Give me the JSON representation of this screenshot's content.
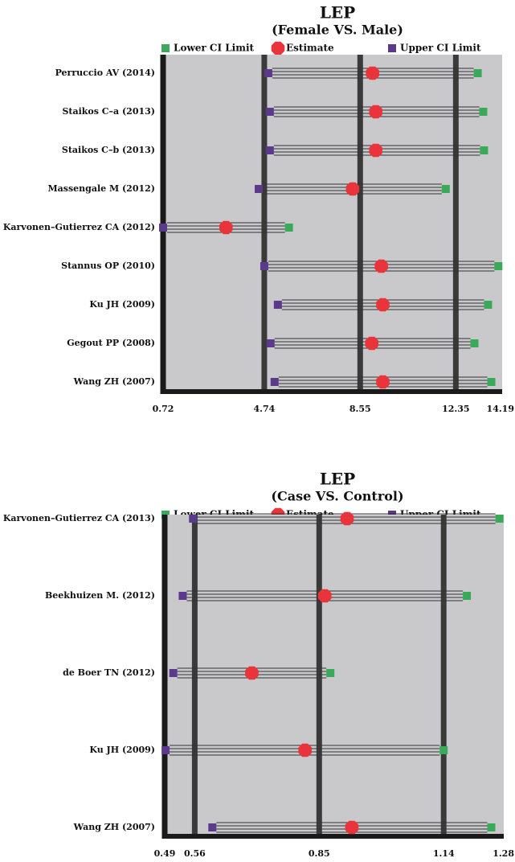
{
  "chart_data": [
    {
      "type": "forest",
      "title": "LEP",
      "subtitle": "(Female VS. Male)",
      "categories": [
        "Perruccio AV (2014)",
        "Staikos C–a (2013)",
        "Staikos C–b (2013)",
        "Massengale M (2012)",
        "Karvonen–Gutierrez CA (2012)",
        "Stannus OP (2010)",
        "Ku JH (2009)",
        "Gegout PP (2008)",
        "Wang ZH (2007)"
      ],
      "series": [
        {
          "name": "Lower CI Limit",
          "color": "#3aaa5a",
          "values": [
            13.22,
            13.44,
            13.47,
            11.95,
            5.72,
            14.04,
            13.63,
            13.09,
            13.76
          ]
        },
        {
          "name": "Estimate",
          "color": "#e8343a",
          "values": [
            9.04,
            9.17,
            9.17,
            8.25,
            3.22,
            9.39,
            9.45,
            9.01,
            9.45
          ]
        },
        {
          "name": "Upper CI Limit",
          "color": "#5b3a8c",
          "values": [
            4.9,
            4.96,
            4.96,
            4.52,
            0.72,
            4.74,
            5.28,
            4.99,
            5.15
          ]
        }
      ],
      "xlim": [
        0.72,
        14.19
      ],
      "xticks": [
        0.72,
        4.74,
        8.55,
        12.35,
        14.19
      ],
      "grid": true
    },
    {
      "type": "forest",
      "title": "LEP",
      "subtitle": "(Case VS. Control)",
      "categories": [
        "Karvonen–Gutierrez CA (2013)",
        "Beekhuizen M. (2012)",
        "de Boer TN (2012)",
        "Ku JH (2009)",
        "Wang ZH (2007)"
      ],
      "series": [
        {
          "name": "Lower CI Limit",
          "color": "#3aaa5a",
          "values": [
            1.27,
            1.194,
            0.876,
            1.14,
            1.251
          ]
        },
        {
          "name": "Estimate",
          "color": "#e8343a",
          "values": [
            0.915,
            0.863,
            0.693,
            0.817,
            0.926
          ]
        },
        {
          "name": "Upper CI Limit",
          "color": "#5b3a8c",
          "values": [
            0.556,
            0.532,
            0.51,
            0.492,
            0.601
          ]
        }
      ],
      "xlim": [
        0.49,
        1.28
      ],
      "xticks": [
        0.49,
        0.56,
        0.85,
        1.14,
        1.28
      ],
      "grid": true
    }
  ]
}
